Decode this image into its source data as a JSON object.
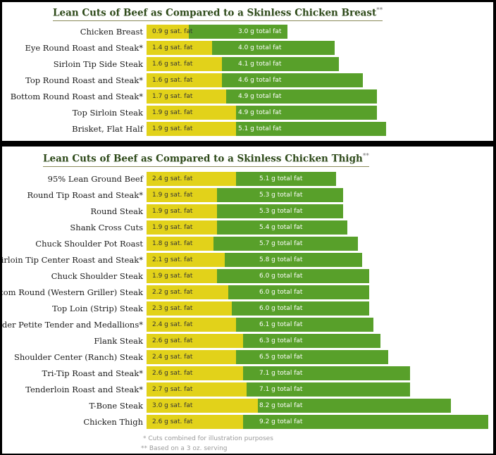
{
  "chart_data": [
    {
      "type": "bar",
      "title": "Lean Cuts of Beef as Compared to a Skinless Chicken Breast",
      "title_mark": "**",
      "categories": [
        "Chicken Breast",
        "Eye Round Roast and Steak*",
        "Sirloin Tip Side Steak",
        "Top Round Roast and Steak*",
        "Bottom Round Roast and Steak*",
        "Top Sirloin Steak",
        "Brisket, Flat Half"
      ],
      "series": [
        {
          "name": "sat. fat",
          "values": [
            0.9,
            1.4,
            1.6,
            1.6,
            1.7,
            1.9,
            1.9
          ],
          "labels": [
            "0.9 g sat. fat",
            "1.4 g sat. fat",
            "1.6 g sat. fat",
            "1.6 g sat. fat",
            "1.7 g sat. fat",
            "1.9 g sat. fat",
            "1.9 g sat. fat"
          ]
        },
        {
          "name": "total fat",
          "values": [
            3.0,
            4.0,
            4.1,
            4.6,
            4.9,
            4.9,
            5.1
          ],
          "labels": [
            "3.0 g total fat",
            "4.0 g total fat",
            "4.1 g total fat",
            "4.6 g total fat",
            "4.9 g total fat",
            "4.9 g total fat",
            "5.1 g total fat"
          ]
        }
      ],
      "colors": {
        "sat_fat": "#e2d21a",
        "total_fat": "#58a02a"
      }
    },
    {
      "type": "bar",
      "title": "Lean Cuts of Beef as Compared to a Skinless Chicken Thigh",
      "title_mark": "**",
      "categories": [
        "95% Lean Ground Beef",
        "Round Tip Roast and Steak*",
        "Round Steak",
        "Shank Cross Cuts",
        "Chuck Shoulder Pot Roast",
        "Sirloin Tip Center Roast and Steak*",
        "Chuck Shoulder Steak",
        "Bottom Round (Western Griller) Steak",
        "Top Loin (Strip) Steak",
        "Shoulder Petite Tender and Medallions*",
        "Flank Steak",
        "Shoulder Center (Ranch) Steak",
        "Tri-Tip Roast and Steak*",
        "Tenderloin Roast and Steak*",
        "T-Bone Steak",
        "Chicken Thigh"
      ],
      "series": [
        {
          "name": "sat. fat",
          "values": [
            2.4,
            1.9,
            1.9,
            1.9,
            1.8,
            2.1,
            1.9,
            2.2,
            2.3,
            2.4,
            2.6,
            2.4,
            2.6,
            2.7,
            3.0,
            2.6
          ],
          "labels": [
            "2.4 g sat. fat",
            "1.9 g sat. fat",
            "1.9 g sat. fat",
            "1.9 g sat. fat",
            "1.8 g sat. fat",
            "2.1 g sat. fat",
            "1.9 g sat. fat",
            "2.2 g sat. fat",
            "2.3 g sat. fat",
            "2.4 g sat. fat",
            "2.6 g sat. fat",
            "2.4 g sat. fat",
            "2.6 g sat. fat",
            "2.7 g sat. fat",
            "3.0 g sat. fat",
            "2.6 g sat. fat"
          ]
        },
        {
          "name": "total fat",
          "values": [
            5.1,
            5.3,
            5.3,
            5.4,
            5.7,
            5.8,
            6.0,
            6.0,
            6.0,
            6.1,
            6.3,
            6.5,
            7.1,
            7.1,
            8.2,
            9.2
          ],
          "labels": [
            "5.1 g total fat",
            "5.3 g total fat",
            "5.3 g total fat",
            "5.4 g total fat",
            "5.7 g total fat",
            "5.8 g total fat",
            "6.0 g total fat",
            "6.0 g total fat",
            "6.0 g total fat",
            "6.1 g total fat",
            "6.3 g total fat",
            "6.5 g total fat",
            "7.1 g total fat",
            "7.1 g total fat",
            "8.2 g total fat",
            "9.2 g total fat"
          ]
        }
      ],
      "colors": {
        "sat_fat": "#e2d21a",
        "total_fat": "#58a02a"
      }
    }
  ],
  "footnotes": {
    "note1": "* Cuts combined for illustration purposes",
    "note2": "** Based on a 3 oz. serving"
  }
}
